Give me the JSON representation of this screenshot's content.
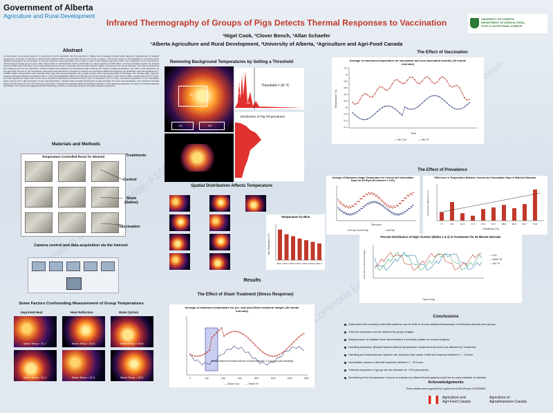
{
  "header": {
    "gov_logo_line1": "Government of Alberta",
    "gov_logo_line2": "Agriculture and Rural Development",
    "title": "Infrared Thermography of Groups of Pigs Detects Thermal Responses to Vaccination",
    "authors": "¹Nigel Cook, ²Clover Bench, ²Allan Schaefer",
    "affiliations": "¹Alberta Agriculture and Rural Development, ²University of Alberta, ³Agriculture and Agri-Food Canada",
    "ua_logo_line1": "UNIVERSITY OF ALBERTA",
    "ua_logo_line2": "DEPARTMENT OF AGRICULTURAL,",
    "ua_logo_line3": "FOOD & NUTRITIONAL SCIENCE"
  },
  "abstract": {
    "heading": "Abstract",
    "text": "An automated, non-invasive system for monitoring of thermoregulation has the potential to mitigate swine diseases through earlier detection. Measurement of radiated temperature of groups of animals by infrared thermography (IRT) is an essential component of such a system. This study reports on the feasibility of monitoring group radiated temperature as a biomarker of immune response using vaccination as a model. A total of 100 weaned pigs were used in 10 replications of an experiment in which groups of 5 pigs per pen were either infused with an intramuscular vaccine (Vaccination) or sham injection of 0.9% saline, or left as untreated controls. An infrared camera (FLIR A310) was fixed to the ceiling directly above the pen of animals, and recorded infrared images of the group at 5 minute intervals. The order of treatments was balanced over the 10 replications. Infrared images were analysed for temperature data including the maximum image temperature. The effect of the distribution of the pigs within the pen on the temperature parameters was assessed by analysis of variance for temperature differences between pig distribution and was significant (P < 0.0001). Higher temperatures were recorded when pigs were grouped together into a single cluster, which represented 40% of all images. The average daily maximum image temperature following vaccination (38.4 ± 0.4C) was significantly higher (P<0.05) than the Control animals (38.0 ± 0.4C) and the Sham treated group (37.9 ± 0.4C), and was significantly higher than for the same animal's temperatures recorded 24 hours prior to vaccination (37.8 ± 0.4C). Increased temperature in the Vaccination group occurred from approximately 3 hours post-vaccination, reached peak elevated temperature at approximately 10 hours post-vaccination, and remained elevated above control values for up to 22 hours post-vaccination. Infrared thermography detected significant changes in the radiated temperature of a group of animals following vaccination. The experiment suggests that IRT technology could be a useful screening tool for febrile disease in pig barns."
  },
  "materials": {
    "heading": "Materials and Methods",
    "room_label": "Temperature Controlled Room for Weaned",
    "treatments": "Treatments",
    "control": "Control",
    "sham": "Sham\n(Saline)",
    "vaccination": "Vaccination",
    "camera": "Camera control and data acquisition via the Internet"
  },
  "confound": {
    "heading": "Some Factors Confounding Measurement of Group Temperatures",
    "col1": "Imprinted Heat",
    "col2": "Heat Reflection",
    "col3": "Water (Urine)",
    "m1": "Mean Temp = 31.7",
    "m2": "Mean Temp = 34.4",
    "m3": "Mean Temp = 33.8",
    "m4": "Mean Temp = 31.4",
    "m5": "Mean Temp = 32.4",
    "m6": "Mean Temp = 26.5"
  },
  "threshold": {
    "heading": "Removing Background Temperatures by Setting a Threshold",
    "a1": "A1",
    "a2": "A2",
    "a3": "A3",
    "a4": "A4",
    "threshold": "Threshold = 30 °C",
    "dist_label": "Distribution of Pig Temperatures"
  },
  "spatial": {
    "heading": "Spatial Distribution Affects Temperature",
    "blob_chart_title": "Temperature by Blob",
    "blobs": [
      "Blob 1",
      "Blob 2",
      "Blob 3",
      "Blob 4",
      "Blob 5",
      "Blob 6",
      "Blob 7"
    ],
    "blob_y_label": "Max Temperature (°C)"
  },
  "results_heading": "Results",
  "sham": {
    "heading": "The Effect of Sham Treatment (Stress Response)",
    "chart_title": "Average of maximum temperature for pre- and post-Sham treatment images (30 minute intervals)",
    "annotation": "Temperature increased above normal between 1-4 hours post-handling",
    "legend1": "Sham Con",
    "legend2": "Sham Trt"
  },
  "vaccination": {
    "heading": "The Effect of Vaccination",
    "chart_title": "Average of maximum temperature for vaccinated and non-vaccinated animals (30 minute intervals)",
    "legend1": "Vac Con",
    "legend2": "Vac Trt",
    "ylabel": "Temperature (°C)",
    "xlabel": "Time"
  },
  "prevalence": {
    "heading": "The Effect of Prevalence",
    "left_title": "Average of Maximum Image Temperature for Control and Vaccination Days for All Reps (Prevalence = 14%)",
    "left_legend1": "Pre Vac Control Day",
    "left_legend2": "Vac Day",
    "left_xlabel": "Time (min)",
    "right_title": "Difference in Temperature Between Control and Vaccination Days in Matched Samples",
    "right_xlabel": "Prevalence (%)",
    "right_ylabel": "Temperature Difference (°C)",
    "categories": [
      "7.1",
      "8.2",
      "14.3",
      "17.4",
      "20.1",
      "41.7",
      "48.6",
      "54.3",
      "66.7",
      "70.8"
    ],
    "values": [
      0.2,
      0.45,
      0.18,
      0.12,
      0.28,
      0.32,
      0.38,
      0.3,
      0.4,
      0.75
    ]
  },
  "clusters": {
    "title": "Percent Distribution of High Clusters (Blobs 1 & 2) in Treatments for 30 Minute Intervals",
    "xlabel": "Time of Day",
    "ylabel": "Proportion of Treatment Images",
    "legend": [
      "Con",
      "Sham Trt",
      "Vac Trt"
    ]
  },
  "conclusions": {
    "heading": "Conclusions",
    "items": [
      "Automated and remotely controlled systems can be built to record radiated temperature of individual animals and groups",
      "Thermal responses can be detected by group images",
      "Measurement of radiated heat demonstrates a circadian pattern in normal subjects",
      "Huddling behaviour (Blobs/Clusters) affects temperature measurements but is not affected by Treatment",
      "Handling and intramuscular injection are stressors that cause a thermal response between 1 - 4 hours",
      "Vaccination causes a thermal response between 1 - 20 hours",
      "Thermal responses of group can be detected at ~10% prevalence",
      "Monitoring of the temperature of pens of animals by infrared thermography could be an early indicator of disease"
    ]
  },
  "ack": {
    "heading": "Acknowledgements",
    "text": "These studies were supported by a grant from ALMA (Project 2010R066R)",
    "aafc_en1": "Agriculture and",
    "aafc_en2": "Agri-Food Canada",
    "aafc_fr1": "Agriculture et",
    "aafc_fr2": "Agroalimentaire Canada"
  },
  "colors": {
    "title": "#c0392b",
    "bar": "#c0392b",
    "blue": "#2c3e7a"
  }
}
